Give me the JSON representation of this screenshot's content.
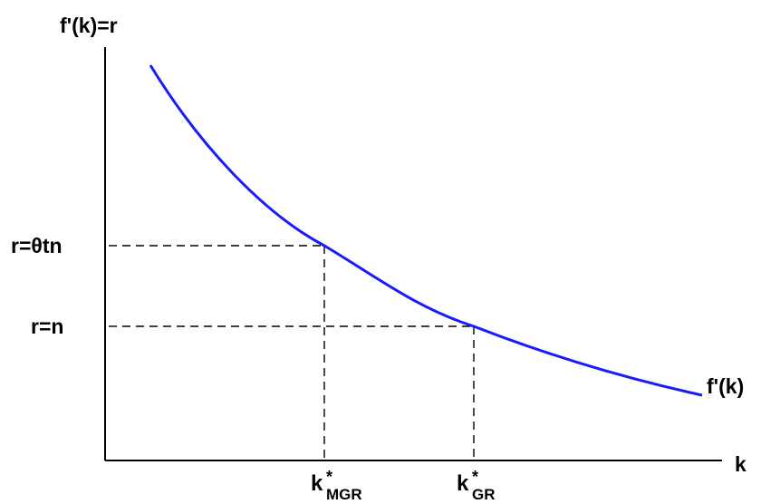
{
  "diagram": {
    "labels": {
      "y_axis": "f'(k)=r",
      "x_axis": "k",
      "curve": "f'(k)",
      "r_high": "r=θtn",
      "r_low": "r=n",
      "k_mgr_base": "k",
      "k_mgr_sup": "*",
      "k_mgr_sub": "MGR",
      "k_gr_base": "k",
      "k_gr_sup": "*",
      "k_gr_sub": "GR"
    },
    "colors": {
      "curve": "#1a1aff",
      "axes": "#000000",
      "guides": "#000000"
    },
    "guide_style": "dashed"
  }
}
